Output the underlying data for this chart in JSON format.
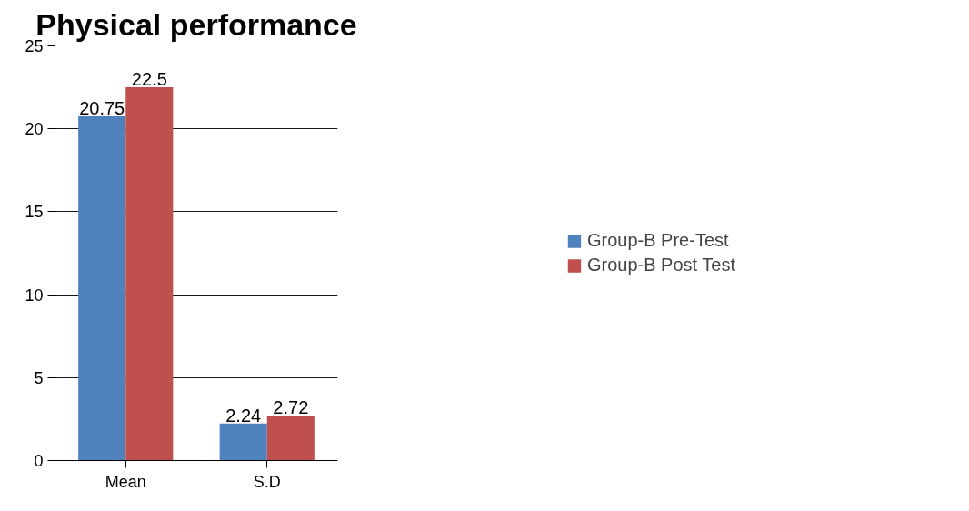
{
  "chart_data": {
    "type": "bar",
    "title": "Physical performance",
    "categories": [
      "Mean",
      "S.D"
    ],
    "series": [
      {
        "name": "Group-B Pre-Test",
        "color": "#4f81bd",
        "values": [
          20.75,
          2.24
        ]
      },
      {
        "name": "Group-B Post Test",
        "color": "#c0504d",
        "values": [
          22.5,
          2.72
        ]
      }
    ],
    "ylim": [
      0,
      25
    ],
    "yticks": [
      0,
      5,
      10,
      15,
      20,
      25
    ],
    "grid": "y",
    "legend": "right",
    "data_labels": true
  }
}
